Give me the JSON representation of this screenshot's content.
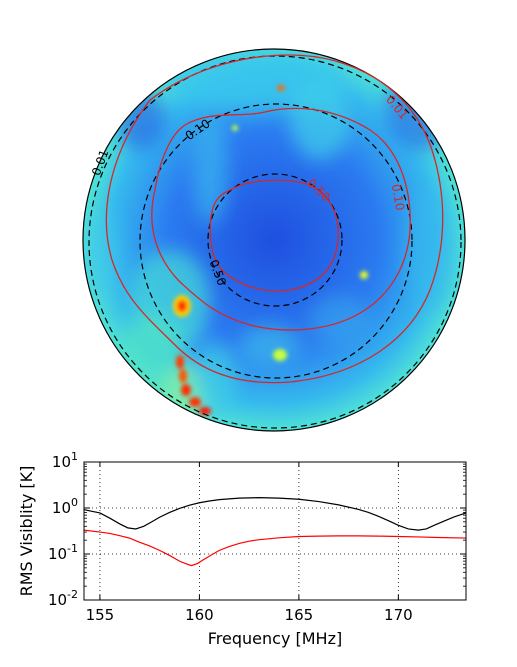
{
  "chart_data": [
    {
      "type": "heatmap",
      "subtype": "sky-map-orthographic",
      "title": "",
      "colormap": "jet",
      "contour_levels": [
        {
          "level": "0.01",
          "style": "solid",
          "color": "#d62728"
        },
        {
          "level": "0.01",
          "style": "dashed",
          "color": "#000000"
        },
        {
          "level": "0.10",
          "style": "solid",
          "color": "#d62728"
        },
        {
          "level": "0.10",
          "style": "dashed",
          "color": "#000000"
        },
        {
          "level": "0.50",
          "style": "solid",
          "color": "#d62728"
        },
        {
          "level": "0.50",
          "style": "dashed",
          "color": "#000000"
        }
      ],
      "contour_labels": [
        {
          "text": "0.01",
          "color": "#d62728"
        },
        {
          "text": "0.01",
          "color": "#000000"
        },
        {
          "text": "0.10",
          "color": "#000000"
        },
        {
          "text": "0.10",
          "color": "#d62728"
        },
        {
          "text": "0.50",
          "color": "#d62728"
        },
        {
          "text": "0.50",
          "color": "#000000"
        }
      ]
    },
    {
      "type": "line",
      "title": "",
      "xlabel": "Frequency [MHz]",
      "ylabel": "RMS Visiblity [K]",
      "xlim": [
        154.2,
        173.4
      ],
      "ylim_log10": [
        -2,
        1
      ],
      "yscale": "log",
      "grid": true,
      "xticks": [
        155,
        160,
        165,
        170
      ],
      "xtick_labels": [
        "155",
        "160",
        "165",
        "170"
      ],
      "yticks_log10": [
        -2,
        -1,
        0,
        1
      ],
      "ytick_labels": [
        {
          "base": "10",
          "exp": "-2"
        },
        {
          "base": "10",
          "exp": "-1"
        },
        {
          "base": "10",
          "exp": "0"
        },
        {
          "base": "10",
          "exp": "1"
        }
      ],
      "series": [
        {
          "name": "black",
          "color": "#000000",
          "x": [
            154.2,
            155.0,
            155.5,
            156.0,
            156.4,
            156.8,
            157.2,
            157.6,
            158.0,
            158.5,
            159.0,
            159.5,
            160.0,
            160.5,
            161.0,
            162.0,
            163.0,
            164.0,
            165.0,
            166.0,
            167.0,
            168.0,
            168.5,
            169.0,
            169.5,
            170.0,
            170.5,
            171.0,
            171.4,
            171.8,
            172.3,
            172.8,
            173.4
          ],
          "y": [
            0.92,
            0.78,
            0.6,
            0.45,
            0.37,
            0.35,
            0.4,
            0.5,
            0.63,
            0.8,
            0.98,
            1.15,
            1.3,
            1.42,
            1.52,
            1.64,
            1.68,
            1.64,
            1.55,
            1.38,
            1.17,
            0.93,
            0.8,
            0.66,
            0.53,
            0.42,
            0.35,
            0.33,
            0.35,
            0.42,
            0.52,
            0.64,
            0.78
          ]
        },
        {
          "name": "red",
          "color": "#ff0000",
          "x": [
            154.2,
            155.0,
            155.5,
            156.0,
            156.5,
            157.0,
            157.5,
            158.0,
            158.5,
            159.0,
            159.3,
            159.6,
            159.9,
            160.2,
            160.6,
            161.0,
            161.5,
            162.0,
            162.5,
            163.0,
            164.0,
            165.0,
            166.0,
            167.0,
            168.0,
            169.0,
            170.0,
            171.0,
            172.0,
            173.4
          ],
          "y": [
            0.33,
            0.3,
            0.28,
            0.25,
            0.22,
            0.18,
            0.15,
            0.12,
            0.093,
            0.07,
            0.062,
            0.056,
            0.062,
            0.075,
            0.095,
            0.12,
            0.145,
            0.17,
            0.19,
            0.205,
            0.225,
            0.24,
            0.245,
            0.248,
            0.248,
            0.245,
            0.24,
            0.235,
            0.228,
            0.222
          ]
        }
      ]
    }
  ]
}
